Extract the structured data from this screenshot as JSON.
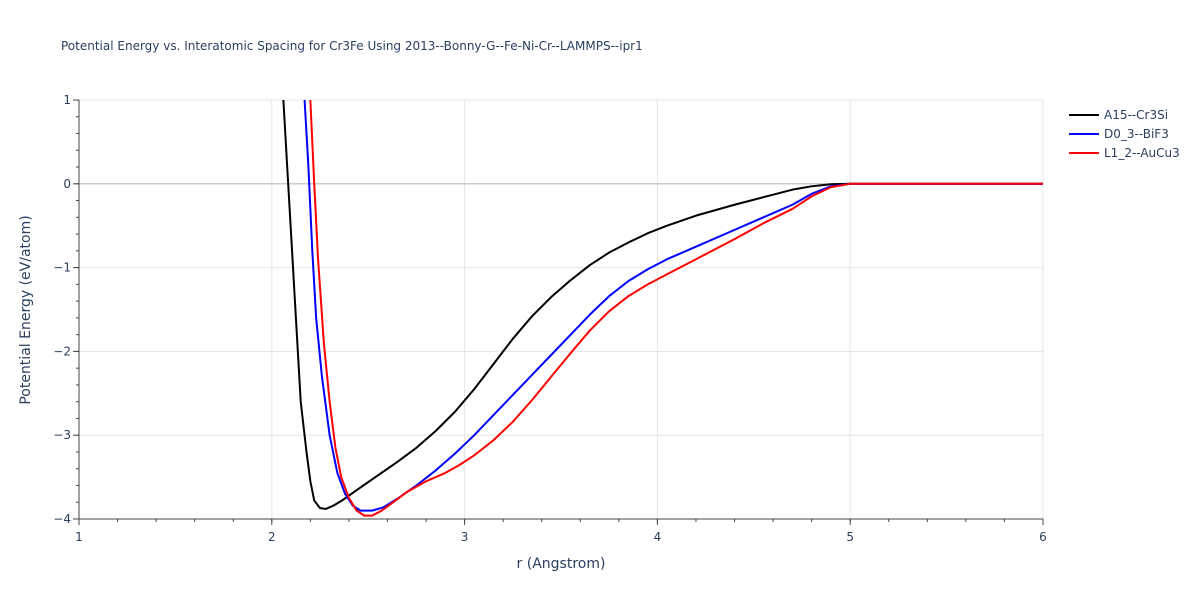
{
  "chart_data": {
    "type": "line",
    "title": "Potential Energy vs. Interatomic Spacing for Cr3Fe Using 2013--Bonny-G--Fe-Ni-Cr--LAMMPS--ipr1",
    "xlabel": "r (Angstrom)",
    "ylabel": "Potential Energy (eV/atom)",
    "xlim": [
      1,
      6
    ],
    "ylim": [
      -4,
      1
    ],
    "x_ticks": [
      "1",
      "2",
      "3",
      "4",
      "5",
      "6"
    ],
    "y_ticks": [
      "1",
      "0",
      "−1",
      "−2",
      "−3",
      "−4"
    ],
    "grid": true,
    "legend_position": "top-right",
    "series": [
      {
        "name": "A15--Cr3Si",
        "color": "#000000",
        "points": [
          [
            2.06,
            1.0
          ],
          [
            2.08,
            0.2
          ],
          [
            2.1,
            -0.6
          ],
          [
            2.12,
            -1.4
          ],
          [
            2.15,
            -2.6
          ],
          [
            2.18,
            -3.2
          ],
          [
            2.2,
            -3.55
          ],
          [
            2.22,
            -3.78
          ],
          [
            2.25,
            -3.87
          ],
          [
            2.28,
            -3.88
          ],
          [
            2.32,
            -3.84
          ],
          [
            2.37,
            -3.77
          ],
          [
            2.45,
            -3.64
          ],
          [
            2.55,
            -3.48
          ],
          [
            2.65,
            -3.32
          ],
          [
            2.75,
            -3.15
          ],
          [
            2.85,
            -2.95
          ],
          [
            2.95,
            -2.72
          ],
          [
            3.05,
            -2.45
          ],
          [
            3.15,
            -2.15
          ],
          [
            3.25,
            -1.85
          ],
          [
            3.35,
            -1.58
          ],
          [
            3.45,
            -1.35
          ],
          [
            3.55,
            -1.15
          ],
          [
            3.65,
            -0.97
          ],
          [
            3.75,
            -0.82
          ],
          [
            3.85,
            -0.7
          ],
          [
            3.95,
            -0.59
          ],
          [
            4.05,
            -0.5
          ],
          [
            4.2,
            -0.38
          ],
          [
            4.4,
            -0.25
          ],
          [
            4.55,
            -0.16
          ],
          [
            4.7,
            -0.07
          ],
          [
            4.8,
            -0.03
          ],
          [
            4.9,
            -0.005
          ],
          [
            5.0,
            0.0
          ],
          [
            6.0,
            0.0
          ]
        ]
      },
      {
        "name": "D0_3--BiF3",
        "color": "#0000ff",
        "points": [
          [
            2.17,
            1.0
          ],
          [
            2.19,
            0.2
          ],
          [
            2.21,
            -0.8
          ],
          [
            2.23,
            -1.6
          ],
          [
            2.26,
            -2.3
          ],
          [
            2.3,
            -3.0
          ],
          [
            2.34,
            -3.45
          ],
          [
            2.38,
            -3.7
          ],
          [
            2.42,
            -3.84
          ],
          [
            2.46,
            -3.9
          ],
          [
            2.52,
            -3.9
          ],
          [
            2.58,
            -3.86
          ],
          [
            2.65,
            -3.76
          ],
          [
            2.75,
            -3.6
          ],
          [
            2.85,
            -3.42
          ],
          [
            2.95,
            -3.22
          ],
          [
            3.05,
            -3.0
          ],
          [
            3.15,
            -2.76
          ],
          [
            3.25,
            -2.52
          ],
          [
            3.35,
            -2.28
          ],
          [
            3.45,
            -2.04
          ],
          [
            3.55,
            -1.8
          ],
          [
            3.65,
            -1.56
          ],
          [
            3.75,
            -1.34
          ],
          [
            3.85,
            -1.16
          ],
          [
            3.95,
            -1.02
          ],
          [
            4.05,
            -0.9
          ],
          [
            4.2,
            -0.75
          ],
          [
            4.4,
            -0.55
          ],
          [
            4.55,
            -0.4
          ],
          [
            4.7,
            -0.25
          ],
          [
            4.8,
            -0.12
          ],
          [
            4.9,
            -0.03
          ],
          [
            5.0,
            0.0
          ],
          [
            6.0,
            0.0
          ]
        ]
      },
      {
        "name": "L1_2--AuCu3",
        "color": "#ff0000",
        "points": [
          [
            2.2,
            1.0
          ],
          [
            2.22,
            0.0
          ],
          [
            2.24,
            -0.9
          ],
          [
            2.27,
            -1.9
          ],
          [
            2.3,
            -2.6
          ],
          [
            2.33,
            -3.15
          ],
          [
            2.36,
            -3.5
          ],
          [
            2.4,
            -3.75
          ],
          [
            2.44,
            -3.9
          ],
          [
            2.48,
            -3.96
          ],
          [
            2.52,
            -3.96
          ],
          [
            2.57,
            -3.9
          ],
          [
            2.63,
            -3.8
          ],
          [
            2.7,
            -3.68
          ],
          [
            2.8,
            -3.55
          ],
          [
            2.9,
            -3.45
          ],
          [
            2.97,
            -3.36
          ],
          [
            3.05,
            -3.24
          ],
          [
            3.15,
            -3.06
          ],
          [
            3.25,
            -2.84
          ],
          [
            3.35,
            -2.58
          ],
          [
            3.45,
            -2.3
          ],
          [
            3.55,
            -2.02
          ],
          [
            3.65,
            -1.75
          ],
          [
            3.75,
            -1.52
          ],
          [
            3.85,
            -1.34
          ],
          [
            3.95,
            -1.2
          ],
          [
            4.05,
            -1.08
          ],
          [
            4.2,
            -0.9
          ],
          [
            4.4,
            -0.66
          ],
          [
            4.55,
            -0.47
          ],
          [
            4.7,
            -0.3
          ],
          [
            4.8,
            -0.15
          ],
          [
            4.9,
            -0.04
          ],
          [
            5.0,
            0.0
          ],
          [
            6.0,
            0.0
          ]
        ]
      }
    ]
  }
}
